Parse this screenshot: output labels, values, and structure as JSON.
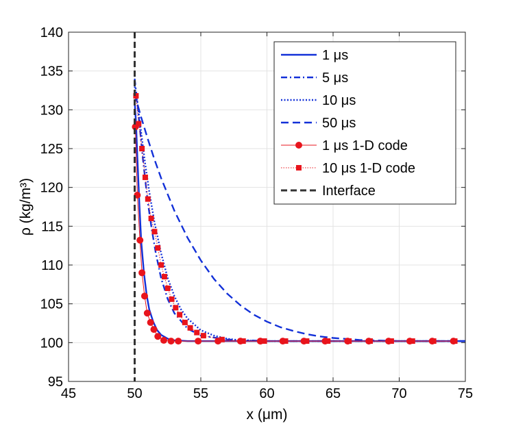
{
  "chart_data": {
    "type": "line",
    "title": "",
    "xlabel": "x (μm)",
    "ylabel": "ρ (kg/m³)",
    "xlim": [
      45,
      75
    ],
    "ylim": [
      95,
      140
    ],
    "xticks": [
      45,
      50,
      55,
      60,
      65,
      70,
      75
    ],
    "yticks": [
      95,
      100,
      105,
      110,
      115,
      120,
      125,
      130,
      135,
      140
    ],
    "grid": true,
    "legend_position": "top-right",
    "series": [
      {
        "name": "1 μs",
        "style": "solid",
        "color": "#1230d8",
        "x": [
          50.0,
          50.1,
          50.2,
          50.35,
          50.5,
          50.7,
          50.9,
          51.1,
          51.4,
          51.7,
          52.0,
          52.5,
          53.0,
          54.0,
          56.0,
          60.0,
          65.0,
          70.0,
          75.0
        ],
        "y": [
          131.0,
          128.5,
          124.0,
          118.0,
          113.0,
          109.0,
          106.2,
          104.3,
          102.7,
          101.6,
          101.0,
          100.5,
          100.3,
          100.2,
          100.2,
          100.2,
          100.2,
          100.2,
          100.2
        ]
      },
      {
        "name": "5 μs",
        "style": "dashdot",
        "color": "#1230d8",
        "x": [
          50.0,
          50.2,
          50.4,
          50.6,
          50.8,
          51.0,
          51.3,
          51.6,
          52.0,
          52.5,
          53.0,
          54.0,
          55.0,
          57.0,
          60.0,
          65.0,
          70.0,
          75.0
        ],
        "y": [
          134.0,
          131.0,
          127.5,
          124.0,
          121.0,
          118.0,
          114.5,
          111.5,
          108.3,
          105.6,
          103.8,
          101.8,
          100.9,
          100.4,
          100.2,
          100.2,
          100.2,
          100.2
        ]
      },
      {
        "name": "10 μs",
        "style": "dotted",
        "color": "#1230d8",
        "x": [
          50.0,
          50.2,
          50.5,
          50.8,
          51.1,
          51.5,
          52.0,
          52.5,
          53.0,
          53.5,
          54.0,
          55.0,
          56.0,
          57.0,
          58.0,
          60.0,
          65.0,
          70.0,
          75.0
        ],
        "y": [
          133.0,
          131.0,
          127.0,
          123.0,
          119.5,
          115.5,
          111.5,
          108.3,
          106.0,
          104.3,
          103.1,
          101.6,
          100.9,
          100.5,
          100.3,
          100.2,
          100.2,
          100.2,
          100.2
        ]
      },
      {
        "name": "50 μs",
        "style": "dashed",
        "color": "#1230d8",
        "x": [
          50.0,
          50.5,
          51.0,
          51.5,
          52.0,
          53.0,
          54.0,
          55.0,
          56.0,
          57.0,
          58.0,
          59.0,
          60.0,
          61.0,
          62.0,
          63.0,
          64.0,
          65.0,
          67.0,
          70.0,
          75.0
        ],
        "y": [
          132.0,
          129.0,
          126.2,
          123.6,
          121.2,
          117.0,
          113.5,
          110.6,
          108.2,
          106.3,
          104.8,
          103.6,
          102.7,
          102.0,
          101.5,
          101.1,
          100.8,
          100.6,
          100.35,
          100.2,
          100.2
        ]
      },
      {
        "name": "1 μs 1-D code",
        "style": "solid-circle",
        "color": "#e8141c",
        "x": [
          50.05,
          50.2,
          50.4,
          50.55,
          50.75,
          50.95,
          51.2,
          51.45,
          51.75,
          52.2,
          52.75,
          53.3,
          54.8,
          56.3,
          58.0,
          59.5,
          61.2,
          62.8,
          64.4,
          66.1,
          67.7,
          69.2,
          70.8,
          72.5,
          74.1
        ],
        "y": [
          127.8,
          119.0,
          113.2,
          109.0,
          106.0,
          103.8,
          102.6,
          101.7,
          100.8,
          100.3,
          100.2,
          100.2,
          100.2,
          100.2,
          100.2,
          100.2,
          100.2,
          100.2,
          100.2,
          100.2,
          100.2,
          100.2,
          100.2,
          100.2,
          100.2
        ]
      },
      {
        "name": "10 μs 1-D code",
        "style": "dotted-square",
        "color": "#e8141c",
        "x": [
          50.1,
          50.3,
          50.55,
          50.8,
          51.0,
          51.25,
          51.5,
          51.75,
          52.0,
          52.25,
          52.5,
          52.8,
          53.1,
          53.4,
          53.8,
          54.2,
          54.7,
          55.2,
          56.6,
          58.2,
          59.8,
          61.4,
          63.0,
          64.6,
          66.2,
          67.8,
          69.4,
          71.0,
          72.6,
          74.2
        ],
        "y": [
          131.8,
          128.2,
          125.0,
          121.3,
          118.5,
          116.0,
          114.3,
          112.2,
          110.0,
          108.5,
          107.0,
          105.6,
          104.5,
          103.6,
          102.6,
          101.9,
          101.3,
          100.9,
          100.4,
          100.2,
          100.2,
          100.2,
          100.2,
          100.2,
          100.2,
          100.2,
          100.2,
          100.2,
          100.2,
          100.2
        ]
      }
    ],
    "interface": {
      "name": "Interface",
      "x": 50,
      "color": "#333333",
      "style": "dashed"
    }
  }
}
